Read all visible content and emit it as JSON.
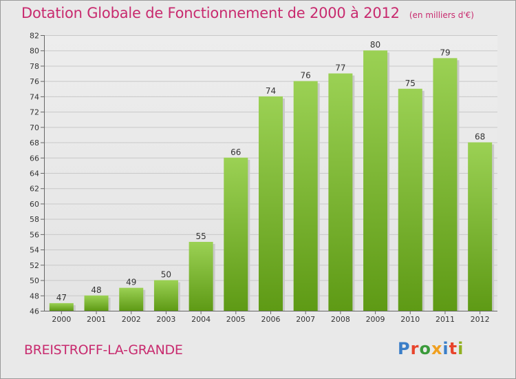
{
  "title": "Dotation Globale de Fonctionnement de 2000 à 2012",
  "unit_note": "(en milliers d'€)",
  "commune": "BREISTROFF-LA-GRANDE",
  "logo": [
    "P",
    "r",
    "o",
    "x",
    "i",
    "t",
    "i"
  ],
  "logo_colors": [
    "#3a7ec8",
    "#e8442c",
    "#3a9a3a",
    "#f0a020",
    "#3a7ec8",
    "#e8442c",
    "#90b020"
  ],
  "colors": {
    "title": "#c82a6e",
    "bar_light": "#9bd154",
    "bar_dark": "#5e9a15",
    "background": "#e9e9e9"
  },
  "chart_data": {
    "type": "bar",
    "categories": [
      "2000",
      "2001",
      "2002",
      "2003",
      "2004",
      "2005",
      "2006",
      "2007",
      "2008",
      "2009",
      "2010",
      "2011",
      "2012"
    ],
    "values": [
      47,
      48,
      49,
      50,
      55,
      66,
      74,
      76,
      77,
      80,
      75,
      79,
      68
    ],
    "ylim": [
      46,
      82
    ],
    "yticks": [
      46,
      48,
      50,
      52,
      54,
      56,
      58,
      60,
      62,
      64,
      66,
      68,
      70,
      72,
      74,
      76,
      78,
      80,
      82
    ],
    "grid": true
  }
}
